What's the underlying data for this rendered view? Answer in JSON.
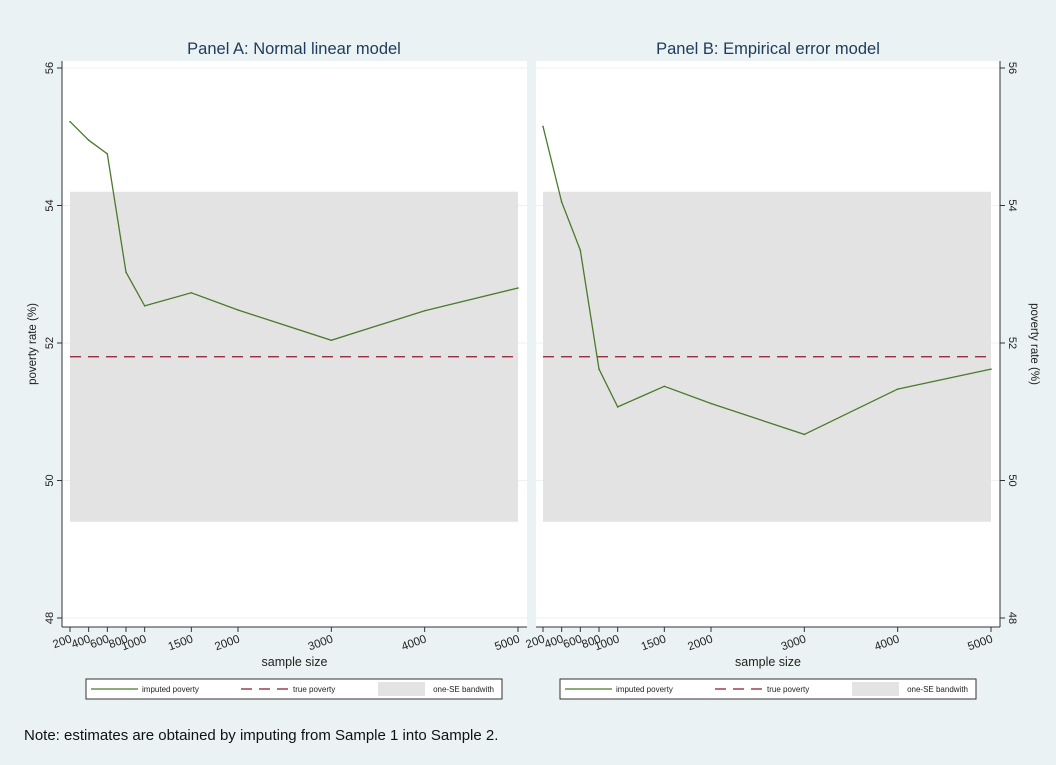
{
  "chart_data": [
    {
      "type": "line",
      "title": "Panel A: Normal linear model",
      "xlabel": "sample size",
      "ylabel": "poverty rate (%)",
      "y_axis_side": "left",
      "xlim": [
        200,
        5000
      ],
      "ylim": [
        48,
        56
      ],
      "x_ticks": [
        200,
        400,
        600,
        800,
        1000,
        1500,
        2000,
        3000,
        4000,
        5000
      ],
      "y_ticks": [
        48,
        50,
        52,
        54,
        56
      ],
      "grid": true,
      "legend_position": "bottom",
      "series": [
        {
          "name": "imputed poverty",
          "style": "solid",
          "color": "#4a7a2a",
          "x": [
            200,
            400,
            600,
            800,
            1000,
            1500,
            2000,
            3000,
            4000,
            5000
          ],
          "y": [
            55.22,
            54.95,
            54.75,
            53.03,
            52.54,
            52.73,
            52.48,
            52.04,
            52.47,
            52.8
          ]
        },
        {
          "name": "true poverty",
          "style": "dashed",
          "color": "#8b1a2b",
          "value": 51.8
        },
        {
          "name": "one-SE bandwith",
          "style": "band",
          "color": "#e3e3e3",
          "range": [
            49.4,
            54.2
          ]
        }
      ]
    },
    {
      "type": "line",
      "title": "Panel B: Empirical error model",
      "xlabel": "sample size",
      "ylabel": "poverty rate (%)",
      "y_axis_side": "right",
      "xlim": [
        200,
        5000
      ],
      "ylim": [
        48,
        56
      ],
      "x_ticks": [
        200,
        400,
        600,
        800,
        1000,
        1500,
        2000,
        3000,
        4000,
        5000
      ],
      "y_ticks": [
        48,
        50,
        52,
        54,
        56
      ],
      "grid": true,
      "legend_position": "bottom",
      "series": [
        {
          "name": "imputed poverty",
          "style": "solid",
          "color": "#4a7a2a",
          "x": [
            200,
            400,
            600,
            800,
            1000,
            1500,
            2000,
            3000,
            4000,
            5000
          ],
          "y": [
            55.15,
            54.05,
            53.35,
            51.62,
            51.07,
            51.37,
            51.12,
            50.67,
            51.33,
            51.62
          ]
        },
        {
          "name": "true poverty",
          "style": "dashed",
          "color": "#8b1a2b",
          "value": 51.8
        },
        {
          "name": "one-SE bandwith",
          "style": "band",
          "color": "#e3e3e3",
          "range": [
            49.4,
            54.2
          ]
        }
      ]
    }
  ],
  "note": "Note: estimates are obtained by imputing from Sample 1 into Sample 2."
}
